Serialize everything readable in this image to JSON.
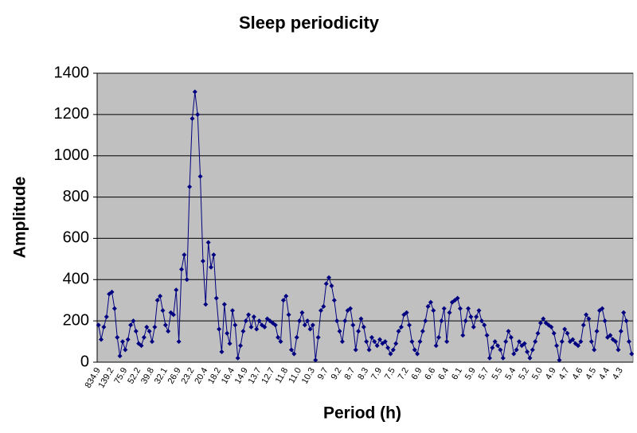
{
  "chart_data": {
    "type": "line",
    "title": "Sleep periodicity",
    "x_label": "Period (h)",
    "y_label": "Amplitude",
    "categories": [
      "834.9",
      null,
      null,
      null,
      null,
      "139.2",
      null,
      null,
      null,
      null,
      "75.9",
      null,
      null,
      null,
      null,
      "52.2",
      null,
      null,
      null,
      null,
      "39.8",
      null,
      null,
      null,
      null,
      "32.1",
      null,
      null,
      null,
      null,
      "26.9",
      null,
      null,
      null,
      null,
      "23.2",
      null,
      null,
      null,
      null,
      "20.4",
      null,
      null,
      null,
      null,
      "18.2",
      null,
      null,
      null,
      null,
      "16.4",
      null,
      null,
      null,
      null,
      "14.9",
      null,
      null,
      null,
      null,
      "13.7",
      null,
      null,
      null,
      null,
      "12.7",
      null,
      null,
      null,
      null,
      "11.8",
      null,
      null,
      null,
      null,
      "11.0",
      null,
      null,
      null,
      null,
      "10.3",
      null,
      null,
      null,
      null,
      "9.7",
      null,
      null,
      null,
      null,
      "9.2",
      null,
      null,
      null,
      null,
      "8.7",
      null,
      null,
      null,
      null,
      "8.3",
      null,
      null,
      null,
      null,
      "7.9",
      null,
      null,
      null,
      null,
      "7.5",
      null,
      null,
      null,
      null,
      "7.2",
      null,
      null,
      null,
      null,
      "6.9",
      null,
      null,
      null,
      null,
      "6.6",
      null,
      null,
      null,
      null,
      "6.4",
      null,
      null,
      null,
      null,
      "6.1",
      null,
      null,
      null,
      null,
      "5.9",
      null,
      null,
      null,
      null,
      "5.7",
      null,
      null,
      null,
      null,
      "5.5",
      null,
      null,
      null,
      null,
      "5.4",
      null,
      null,
      null,
      null,
      "5.2",
      null,
      null,
      null,
      null,
      "5.0",
      null,
      null,
      null,
      null,
      "4.9",
      null,
      null,
      null,
      null,
      "4.7",
      null,
      null,
      null,
      null,
      "4.6",
      null,
      null,
      null,
      null,
      "4.5",
      null,
      null,
      null,
      null,
      "4.4",
      null,
      null,
      null,
      null,
      "4.3",
      null,
      null,
      null,
      null
    ],
    "series": [
      {
        "color": "#000080",
        "values": [
          180,
          110,
          170,
          220,
          330,
          340,
          260,
          120,
          30,
          100,
          60,
          110,
          180,
          200,
          150,
          90,
          80,
          120,
          170,
          150,
          100,
          170,
          300,
          320,
          250,
          180,
          150,
          240,
          230,
          350,
          100,
          450,
          520,
          400,
          850,
          1180,
          1310,
          1200,
          900,
          490,
          280,
          580,
          460,
          520,
          310,
          160,
          50,
          280,
          140,
          90,
          250,
          180,
          20,
          80,
          150,
          200,
          230,
          170,
          220,
          160,
          200,
          180,
          170,
          210,
          200,
          190,
          180,
          120,
          100,
          300,
          320,
          230,
          60,
          40,
          120,
          200,
          240,
          180,
          200,
          160,
          180,
          10,
          120,
          250,
          270,
          380,
          410,
          370,
          300,
          200,
          150,
          100,
          200,
          250,
          260,
          180,
          60,
          150,
          210,
          170,
          100,
          60,
          120,
          100,
          80,
          110,
          90,
          100,
          70,
          40,
          60,
          90,
          150,
          170,
          230,
          240,
          180,
          100,
          60,
          40,
          100,
          150,
          200,
          270,
          290,
          250,
          80,
          120,
          200,
          260,
          100,
          240,
          290,
          300,
          310,
          260,
          130,
          200,
          260,
          220,
          170,
          220,
          250,
          200,
          180,
          130,
          20,
          70,
          100,
          80,
          60,
          20,
          100,
          150,
          120,
          40,
          60,
          100,
          80,
          90,
          50,
          20,
          60,
          100,
          140,
          190,
          210,
          190,
          180,
          170,
          140,
          80,
          10,
          100,
          160,
          140,
          100,
          110,
          90,
          80,
          100,
          180,
          230,
          210,
          100,
          60,
          150,
          250,
          260,
          200,
          120,
          130,
          110,
          100,
          60,
          150,
          240,
          200,
          100,
          40
        ]
      }
    ],
    "ylim": [
      0,
      1400
    ],
    "yticks": [
      0,
      200,
      400,
      600,
      800,
      1000,
      1200,
      1400
    ],
    "grid": true
  }
}
